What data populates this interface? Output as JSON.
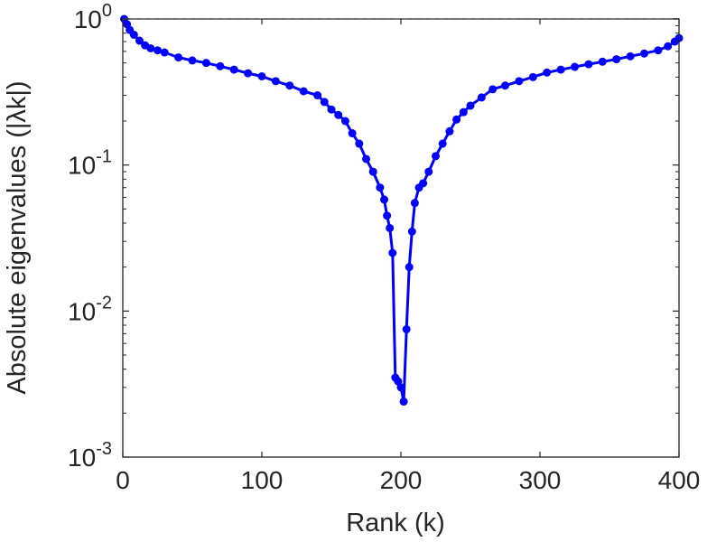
{
  "chart_data": {
    "type": "line",
    "title": "",
    "xlabel": "Rank (k)",
    "ylabel": "Absolute eigenvalues (|λk|)",
    "xlim": [
      0,
      400
    ],
    "ylim": [
      0.001,
      1
    ],
    "yscale": "log",
    "grid": false,
    "legend": "none",
    "x_ticks": [
      0,
      100,
      200,
      300,
      400
    ],
    "x_tick_labels": [
      "0",
      "100",
      "200",
      "300",
      "400"
    ],
    "y_ticks": [
      1,
      0.1,
      0.01,
      0.001
    ],
    "y_tick_labels": [
      {
        "base": "10",
        "exp": "0"
      },
      {
        "base": "10",
        "exp": "-1"
      },
      {
        "base": "10",
        "exp": "-2"
      },
      {
        "base": "10",
        "exp": "-3"
      }
    ],
    "reference_line": {
      "y": 1,
      "style": "dashed",
      "color": "#666666"
    },
    "colors": {
      "series": "#0000ff",
      "axes": "#262626"
    },
    "series": [
      {
        "x": [
          1,
          3,
          5,
          8,
          12,
          16,
          20,
          25,
          30,
          40,
          50,
          60,
          70,
          80,
          90,
          100,
          110,
          120,
          130,
          140,
          145,
          150,
          155,
          160,
          165,
          170,
          175,
          180,
          185,
          188,
          190,
          192,
          194,
          196,
          198,
          200,
          202,
          204,
          206,
          208,
          210,
          213,
          216,
          220,
          225,
          230,
          235,
          240,
          245,
          250,
          258,
          266,
          275,
          285,
          295,
          305,
          315,
          325,
          335,
          345,
          355,
          365,
          375,
          385,
          392,
          397,
          400
        ],
        "values": [
          1.0,
          0.92,
          0.84,
          0.78,
          0.71,
          0.66,
          0.63,
          0.61,
          0.59,
          0.545,
          0.52,
          0.5,
          0.475,
          0.45,
          0.425,
          0.405,
          0.375,
          0.35,
          0.32,
          0.3,
          0.27,
          0.24,
          0.22,
          0.2,
          0.165,
          0.14,
          0.11,
          0.09,
          0.07,
          0.058,
          0.045,
          0.037,
          0.025,
          0.0035,
          0.0033,
          0.003,
          0.0024,
          0.0075,
          0.02,
          0.035,
          0.055,
          0.07,
          0.075,
          0.09,
          0.115,
          0.14,
          0.17,
          0.205,
          0.23,
          0.255,
          0.29,
          0.33,
          0.35,
          0.375,
          0.4,
          0.43,
          0.45,
          0.47,
          0.49,
          0.51,
          0.53,
          0.555,
          0.58,
          0.61,
          0.65,
          0.7,
          0.74
        ]
      }
    ]
  }
}
